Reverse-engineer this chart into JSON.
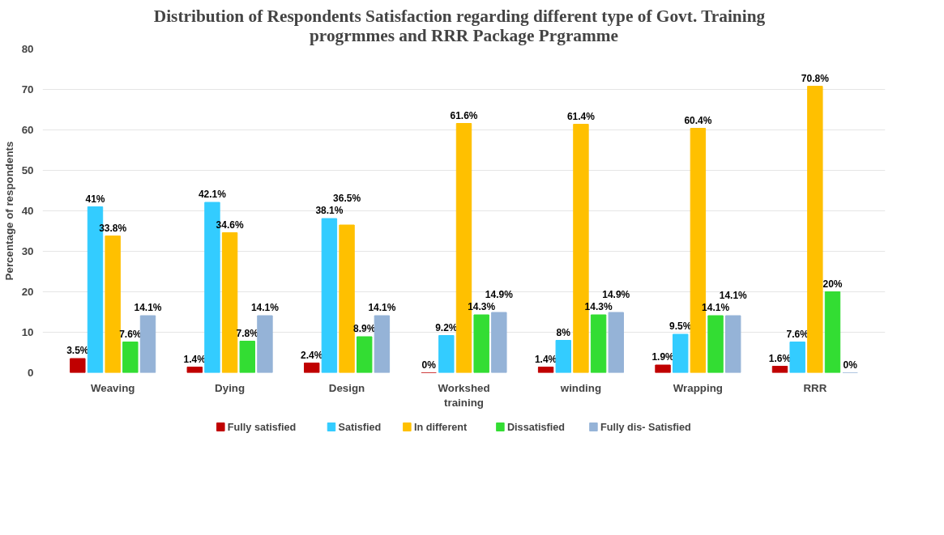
{
  "chart_data": {
    "type": "bar",
    "title": "Distribution of  Respondents Satisfaction regarding  different type of Govt. Training progrmmes and RRR Package Prgramme",
    "ylabel": "Percentage of respondents",
    "categories": [
      "Weaving",
      "Dying",
      "Design",
      "Workshed training",
      "winding",
      "Wrapping",
      "RRR"
    ],
    "series": [
      {
        "name": "Fully satisfied",
        "color": "#c00000",
        "values": [
          3.5,
          1.4,
          2.4,
          0,
          1.4,
          1.9,
          1.6
        ],
        "value_labels": [
          "3.5%",
          "1.4%",
          "2.4%",
          "0%",
          "1.4%",
          "1.9%",
          "1.6%"
        ]
      },
      {
        "name": "Satisfied",
        "color": "#33ccff",
        "values": [
          41,
          42.1,
          38.1,
          9.2,
          8,
          9.5,
          7.6
        ],
        "value_labels": [
          "41%",
          "42.1%",
          "38.1%",
          "9.2%",
          "8%",
          "9.5%",
          "7.6%"
        ]
      },
      {
        "name": "In different",
        "color": "#ffc000",
        "values": [
          33.8,
          34.6,
          36.5,
          61.6,
          61.4,
          60.4,
          70.8
        ],
        "value_labels": [
          "33.8%",
          "34.6%",
          "36.5%",
          "61.6%",
          "61.4%",
          "60.4%",
          "70.8%"
        ]
      },
      {
        "name": "Dissatisfied",
        "color": "#33dd33",
        "values": [
          7.6,
          7.8,
          8.9,
          14.3,
          14.3,
          14.1,
          20
        ],
        "value_labels": [
          "7.6%",
          "7.8%",
          "8.9%",
          "14.3%",
          "14.3%",
          "14.1%",
          "20%"
        ]
      },
      {
        "name": "Fully dis- Satisfied",
        "color": "#95b3d7",
        "values": [
          14.1,
          14.1,
          14.1,
          14.9,
          14.9,
          14.1,
          0
        ],
        "value_labels": [
          "14.1%",
          "14.1%",
          "14.1%",
          "14.9%",
          "14.9%",
          "14.1%",
          "0%"
        ]
      }
    ],
    "ylim": [
      0,
      80
    ],
    "yticks": [
      0,
      10,
      20,
      30,
      40,
      50,
      60,
      70,
      80
    ],
    "grid": "y",
    "legend": "bottom"
  }
}
